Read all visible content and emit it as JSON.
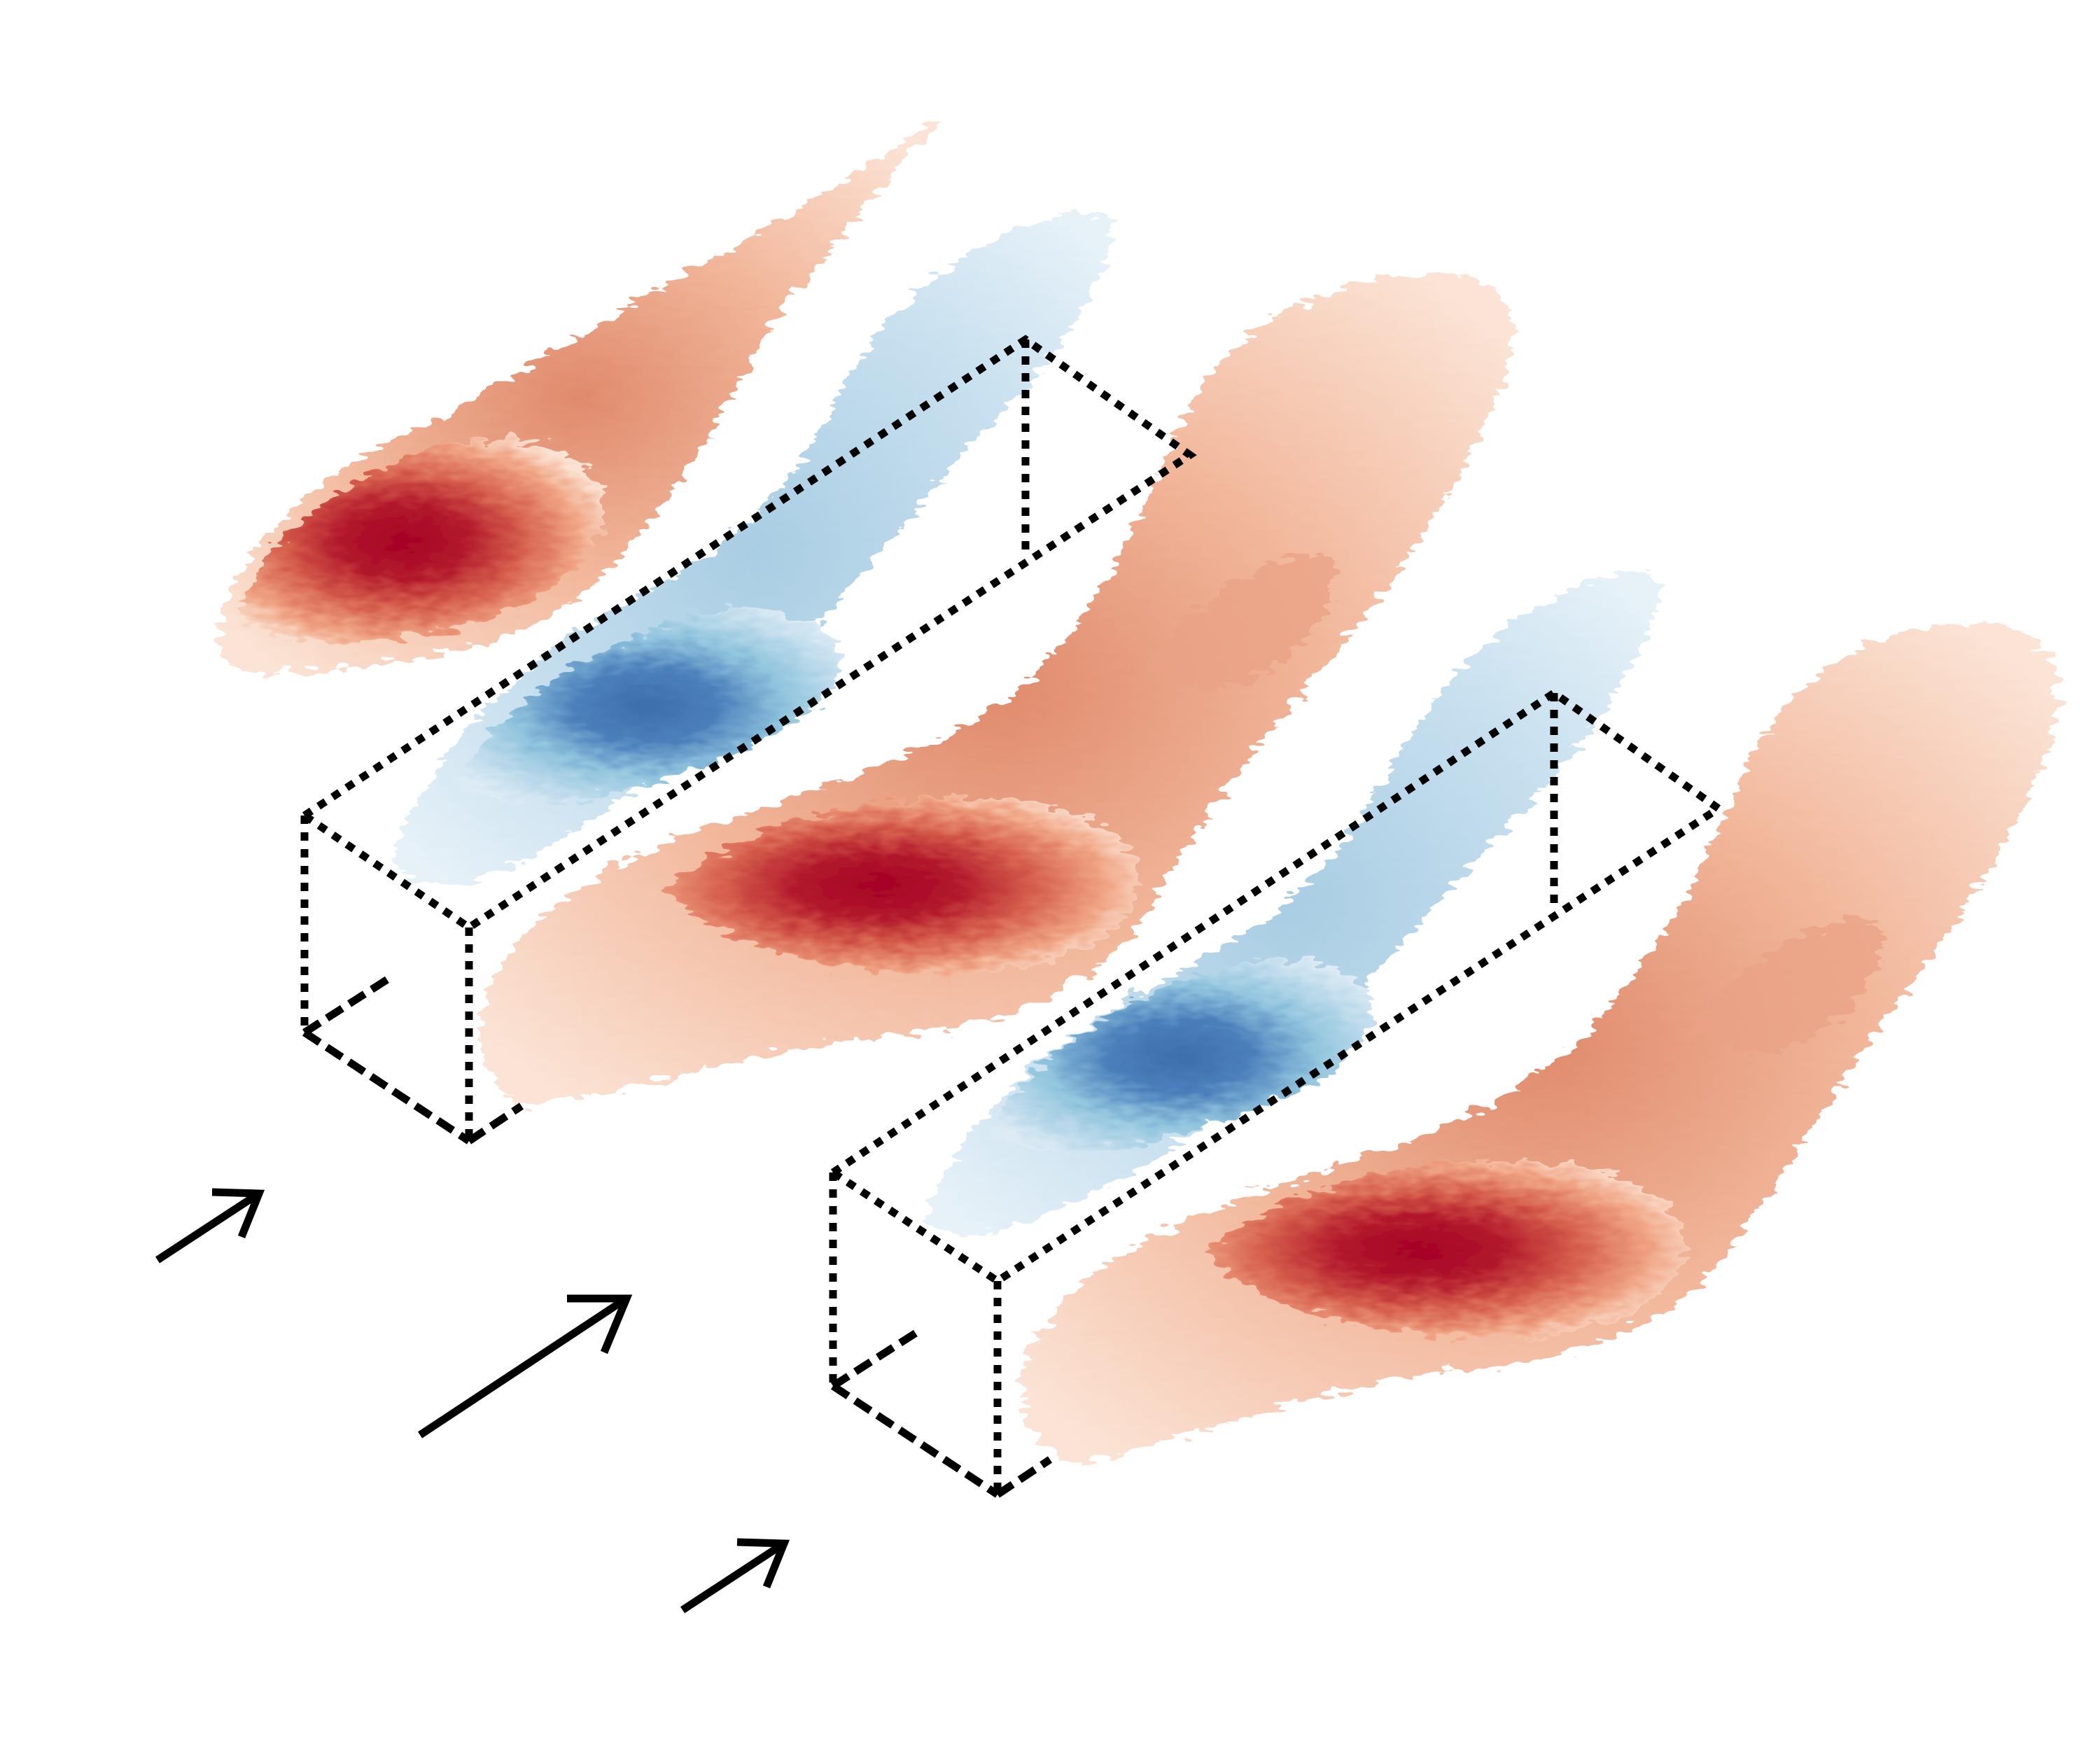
{
  "figure": {
    "kind": "isosurface-flow-visualization",
    "description_text": "",
    "colors": {
      "positive_deep": "#a50026",
      "positive_mid": "#d6604d",
      "positive_light": "#f4a582",
      "positive_faint": "#fbe0cf",
      "negative_deep": "#3c6eac",
      "negative_mid": "#92c5de",
      "negative_light": "#d1e5f0",
      "box_outline": "#000000",
      "arrow": "#000000",
      "background": "#ffffff"
    },
    "elements": {
      "obstacles": [
        "box-1",
        "box-2"
      ],
      "inflow_arrows": 3,
      "positive_structures": 3,
      "negative_structures": 2
    }
  }
}
